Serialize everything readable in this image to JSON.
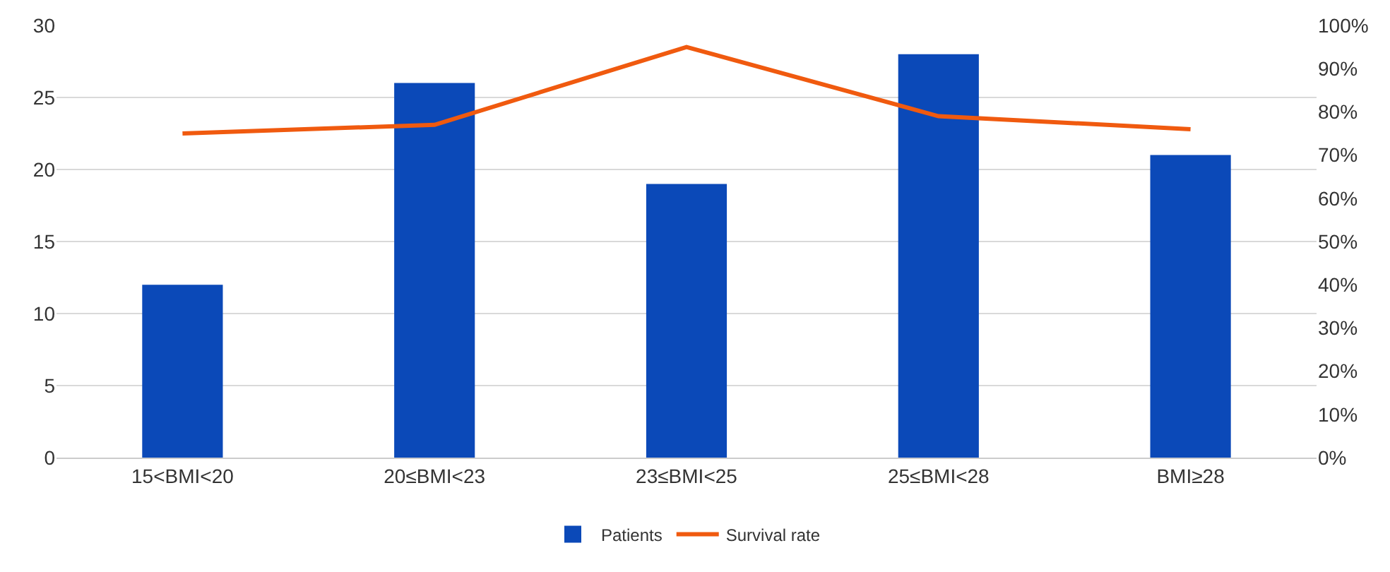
{
  "chart_data": {
    "type": "bar",
    "categories": [
      "15<BMI<20",
      "20≤BMI<23",
      "23≤BMI<25",
      "25≤BMI<28",
      "BMI≥28"
    ],
    "series": [
      {
        "name": "Patients",
        "color": "#0b49b8",
        "values": [
          12,
          26,
          19,
          28,
          21
        ]
      },
      {
        "name": "Survival rate",
        "color": "#f05a0f",
        "type": "line",
        "axis": "y2",
        "values": [
          75,
          77,
          95,
          79,
          76
        ]
      }
    ],
    "ylim": [
      0,
      30
    ],
    "yticks": [
      0,
      5,
      10,
      15,
      20,
      25,
      30
    ],
    "y2lim": [
      0,
      100
    ],
    "y2ticks": [
      {
        "value": 0,
        "label": "0%"
      },
      {
        "value": 10,
        "label": "10%"
      },
      {
        "value": 20,
        "label": "20%"
      },
      {
        "value": 30,
        "label": "30%"
      },
      {
        "value": 40,
        "label": "40%"
      },
      {
        "value": 50,
        "label": "50%"
      },
      {
        "value": 60,
        "label": "60%"
      },
      {
        "value": 70,
        "label": "70%"
      },
      {
        "value": 80,
        "label": "80%"
      },
      {
        "value": 90,
        "label": "90%"
      },
      {
        "value": 100,
        "label": "100%"
      }
    ],
    "grid": "y",
    "legend": "bottom",
    "marker": "none"
  }
}
